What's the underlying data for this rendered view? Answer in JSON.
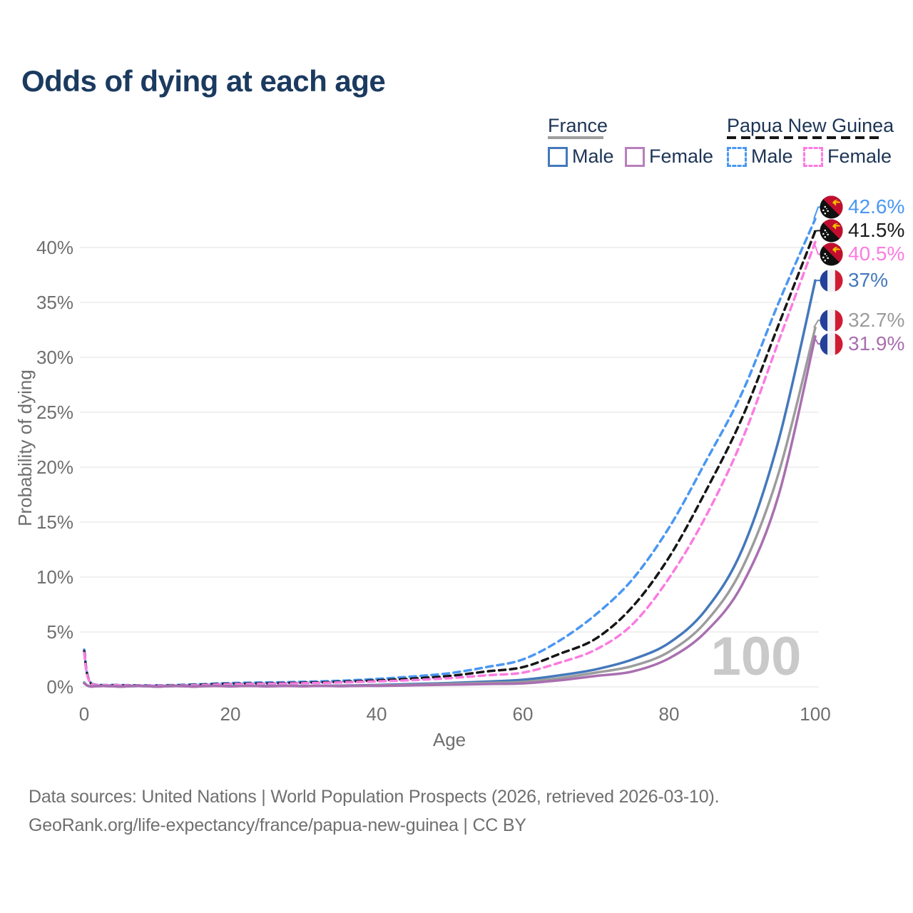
{
  "title": {
    "text": "Odds of dying at each age",
    "color": "#1b3a5f"
  },
  "colors": {
    "navy_text": "#1d3557",
    "tick_text": "#6f6f6f",
    "gridline": "#ebebeb",
    "watermark": "#c9c9c9",
    "footer_text": "#6f6f6f",
    "png_male": "#4a97f2",
    "png_both": "#161616",
    "png_female": "#fb7ce1",
    "france_male": "#4478bb",
    "france_both": "#9c9c9c",
    "france_female": "#a96fb0"
  },
  "legend": {
    "groups": [
      {
        "label": "France",
        "underline_style": "solid",
        "underline_color": "#9e9e9e",
        "items": [
          {
            "label": "Male",
            "swatch_color": "#4478bb",
            "swatch_style": "solid"
          },
          {
            "label": "Female",
            "swatch_color": "#b87fbc",
            "swatch_style": "solid"
          }
        ]
      },
      {
        "label": "Papua New Guinea",
        "underline_style": "dashed",
        "underline_color": "#161616",
        "items": [
          {
            "label": "Male",
            "swatch_color": "#4a97f2",
            "swatch_style": "dashed"
          },
          {
            "label": "Female",
            "swatch_color": "#fb7ce1",
            "swatch_style": "dashed"
          }
        ]
      }
    ]
  },
  "chart_data": {
    "type": "line",
    "title": "Odds of dying at each age",
    "xlabel": "Age",
    "ylabel": "Probability of dying",
    "x_ticks": [
      0,
      20,
      40,
      60,
      80,
      100
    ],
    "y_ticks": [
      "0%",
      "5%",
      "10%",
      "15%",
      "20%",
      "25%",
      "30%",
      "35%",
      "40%"
    ],
    "xlim": [
      0,
      100
    ],
    "ylim_pct": [
      0,
      44
    ],
    "grid": "horizontal only",
    "legend_position": "top-right",
    "watermark": "100",
    "ages": [
      0,
      1,
      5,
      10,
      15,
      20,
      25,
      30,
      35,
      40,
      45,
      50,
      55,
      60,
      65,
      70,
      75,
      80,
      85,
      90,
      95,
      100
    ],
    "series": [
      {
        "name": "Papua New Guinea Male",
        "flag": "png",
        "color": "#4a97f2",
        "dash": true,
        "end_label": "42.6%",
        "values": [
          3.4,
          0.28,
          0.17,
          0.14,
          0.22,
          0.35,
          0.4,
          0.46,
          0.56,
          0.72,
          0.95,
          1.25,
          1.8,
          2.5,
          4.2,
          6.6,
          9.8,
          14.5,
          20.5,
          26.8,
          35,
          42.6
        ]
      },
      {
        "name": "Papua New Guinea Both sexes",
        "flag": "png",
        "color": "#161616",
        "dash": true,
        "end_label": "41.5%",
        "values": [
          3.25,
          0.26,
          0.15,
          0.12,
          0.18,
          0.28,
          0.32,
          0.38,
          0.46,
          0.59,
          0.76,
          1.0,
          1.4,
          1.8,
          3.0,
          4.4,
          7.3,
          11.8,
          17.8,
          24.5,
          33,
          41.5
        ]
      },
      {
        "name": "Papua New Guinea Female",
        "flag": "png",
        "color": "#fb7ce1",
        "dash": true,
        "end_label": "40.5%",
        "values": [
          3.1,
          0.24,
          0.14,
          0.11,
          0.15,
          0.24,
          0.28,
          0.33,
          0.4,
          0.5,
          0.62,
          0.8,
          1.05,
          1.3,
          2.2,
          3.4,
          5.7,
          9.9,
          15.5,
          22.5,
          31.5,
          40.5
        ]
      },
      {
        "name": "France Male",
        "flag": "fr",
        "color": "#4478bb",
        "dash": false,
        "end_label": "37%",
        "values": [
          0.4,
          0.03,
          0.02,
          0.015,
          0.03,
          0.07,
          0.08,
          0.09,
          0.12,
          0.17,
          0.26,
          0.35,
          0.48,
          0.65,
          1.05,
          1.6,
          2.5,
          4.0,
          7.0,
          12.5,
          22.5,
          37
        ]
      },
      {
        "name": "France Both sexes",
        "flag": "fr",
        "color": "#9c9c9c",
        "dash": false,
        "end_label": "32.7%",
        "values": [
          0.37,
          0.025,
          0.015,
          0.01,
          0.02,
          0.05,
          0.055,
          0.065,
          0.09,
          0.13,
          0.19,
          0.28,
          0.36,
          0.45,
          0.8,
          1.3,
          1.9,
          3.2,
          5.9,
          10.8,
          19.5,
          32.7
        ]
      },
      {
        "name": "France Female",
        "flag": "fr",
        "color": "#a96fb0",
        "dash": false,
        "end_label": "31.9%",
        "values": [
          0.33,
          0.02,
          0.012,
          0.01,
          0.015,
          0.03,
          0.035,
          0.045,
          0.06,
          0.09,
          0.14,
          0.2,
          0.26,
          0.32,
          0.6,
          1.0,
          1.4,
          2.6,
          5.0,
          9.3,
          17.5,
          31.9
        ]
      }
    ]
  },
  "footer": {
    "line1": "Data sources: United Nations | World Population Prospects (2026, retrieved 2026-03-10).",
    "line2": "GeoRank.org/life-expectancy/france/papua-new-guinea | CC BY"
  }
}
